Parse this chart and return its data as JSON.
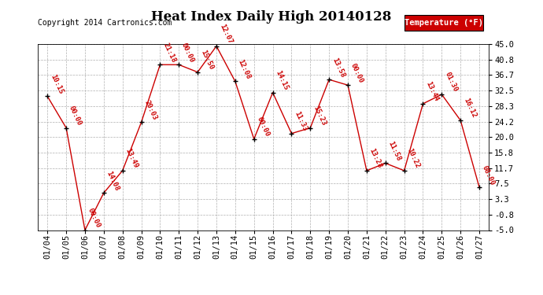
{
  "title": "Heat Index Daily High 20140128",
  "copyright": "Copyright 2014 Cartronics.com",
  "legend_label": "Temperature (°F)",
  "background_color": "#ffffff",
  "plot_bg_color": "#ffffff",
  "grid_color": "#b0b0b0",
  "line_color": "#cc0000",
  "marker_color": "#000000",
  "label_color": "#cc0000",
  "dates": [
    "01/04",
    "01/05",
    "01/06",
    "01/07",
    "01/08",
    "01/09",
    "01/10",
    "01/11",
    "01/12",
    "01/13",
    "01/14",
    "01/15",
    "01/16",
    "01/17",
    "01/18",
    "01/19",
    "01/20",
    "01/21",
    "01/22",
    "01/23",
    "01/24",
    "01/25",
    "01/26",
    "01/27"
  ],
  "values": [
    31.0,
    22.5,
    -5.0,
    5.0,
    11.0,
    24.0,
    39.5,
    39.5,
    37.5,
    44.5,
    35.0,
    19.5,
    32.0,
    21.0,
    22.5,
    35.5,
    34.0,
    11.0,
    13.0,
    11.0,
    29.0,
    31.5,
    24.5,
    6.5
  ],
  "time_labels": [
    "10:15",
    "00:00",
    "00:00",
    "14:08",
    "13:49",
    "20:03",
    "21:18",
    "00:00",
    "15:50",
    "12:07",
    "12:08",
    "00:00",
    "14:15",
    "11:33",
    "15:23",
    "13:58",
    "00:00",
    "13:28",
    "11:58",
    "10:22",
    "13:44",
    "01:30",
    "16:12",
    "08:00"
  ],
  "yticks": [
    -5.0,
    -0.8,
    3.3,
    7.5,
    11.7,
    15.8,
    20.0,
    24.2,
    28.3,
    32.5,
    36.7,
    40.8,
    45.0
  ],
  "ylim": [
    -5.0,
    45.0
  ],
  "title_fontsize": 12,
  "label_fontsize": 6.5,
  "tick_fontsize": 7.5,
  "copyright_fontsize": 7,
  "legend_fontsize": 7.5
}
